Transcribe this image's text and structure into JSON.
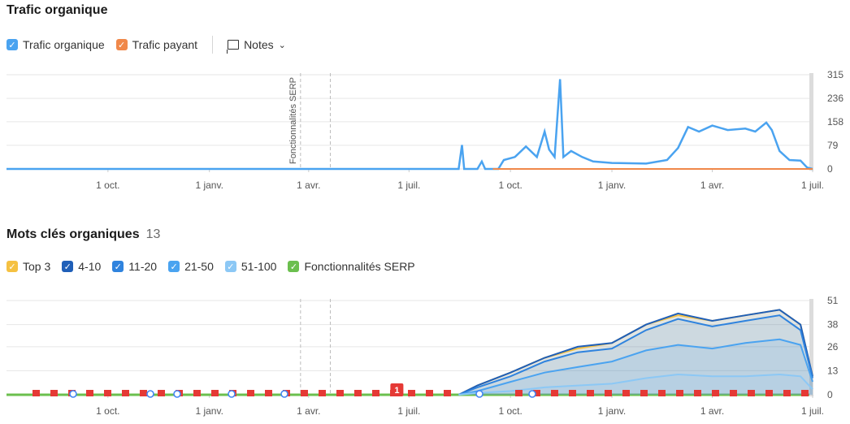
{
  "traffic": {
    "title": "Trafic organique",
    "legend": [
      {
        "label": "Trafic organique",
        "color": "#4aa3f0",
        "checked": true
      },
      {
        "label": "Trafic payant",
        "color": "#f0884a",
        "checked": true
      }
    ],
    "notes_label": "Notes"
  },
  "keywords": {
    "title": "Mots clés organiques",
    "count": "13",
    "legend": [
      {
        "label": "Top 3",
        "color": "#f5c142",
        "checked": true
      },
      {
        "label": "4-10",
        "color": "#1f5fb8",
        "checked": true
      },
      {
        "label": "11-20",
        "color": "#2f83de",
        "checked": true
      },
      {
        "label": "21-50",
        "color": "#4aa3f0",
        "checked": true
      },
      {
        "label": "51-100",
        "color": "#8cc8f5",
        "checked": true
      },
      {
        "label": "Fonctionnalités SERP",
        "color": "#6bbf4e",
        "checked": true
      }
    ]
  },
  "chart_data": [
    {
      "type": "line",
      "title": "Trafic organique",
      "x_range": [
        "2022-07-01",
        "2025-07-01"
      ],
      "x_ticks": [
        "1 oct.",
        "1 janv.",
        "1 avr.",
        "1 juil.",
        "1 oct.",
        "1 janv.",
        "1 avr.",
        "1 juil."
      ],
      "x_tick_dates": [
        "2022-10-01",
        "2023-01-01",
        "2023-04-01",
        "2023-07-01",
        "2023-10-01",
        "2024-01-01",
        "2024-04-01",
        "2024-07-01"
      ],
      "y_ticks": [
        0,
        79,
        158,
        236,
        315
      ],
      "ylim": [
        0,
        315
      ],
      "annotations": [
        {
          "label": "Fonctionnalités SERP",
          "date": "2023-04-01"
        }
      ],
      "series": [
        {
          "name": "Trafic organique",
          "color": "#4aa3f0",
          "points": [
            [
              "2022-07-01",
              0
            ],
            [
              "2023-08-15",
              0
            ],
            [
              "2023-08-18",
              80
            ],
            [
              "2023-08-20",
              0
            ],
            [
              "2023-09-01",
              0
            ],
            [
              "2023-09-05",
              25
            ],
            [
              "2023-09-08",
              0
            ],
            [
              "2023-09-20",
              0
            ],
            [
              "2023-09-25",
              30
            ],
            [
              "2023-10-05",
              40
            ],
            [
              "2023-10-15",
              75
            ],
            [
              "2023-10-25",
              40
            ],
            [
              "2023-11-01",
              125
            ],
            [
              "2023-11-05",
              65
            ],
            [
              "2023-11-10",
              40
            ],
            [
              "2023-11-15",
              300
            ],
            [
              "2023-11-18",
              40
            ],
            [
              "2023-11-25",
              60
            ],
            [
              "2023-12-05",
              40
            ],
            [
              "2023-12-15",
              25
            ],
            [
              "2024-01-01",
              20
            ],
            [
              "2024-02-01",
              18
            ],
            [
              "2024-02-20",
              30
            ],
            [
              "2024-03-01",
              70
            ],
            [
              "2024-03-10",
              140
            ],
            [
              "2024-03-20",
              125
            ],
            [
              "2024-04-01",
              145
            ],
            [
              "2024-04-15",
              130
            ],
            [
              "2024-05-01",
              135
            ],
            [
              "2024-05-10",
              125
            ],
            [
              "2024-05-20",
              155
            ],
            [
              "2024-05-25",
              130
            ],
            [
              "2024-06-01",
              60
            ],
            [
              "2024-06-10",
              30
            ],
            [
              "2024-06-20",
              28
            ],
            [
              "2024-06-26",
              5
            ],
            [
              "2024-07-01",
              0
            ]
          ]
        },
        {
          "name": "Trafic payant",
          "color": "#f0884a",
          "points": [
            [
              "2023-09-15",
              0
            ],
            [
              "2024-07-01",
              0
            ]
          ]
        }
      ]
    },
    {
      "type": "area",
      "title": "Mots clés organiques",
      "x_range": [
        "2022-07-01",
        "2025-07-01"
      ],
      "x_ticks": [
        "1 oct.",
        "1 janv.",
        "1 avr.",
        "1 juil.",
        "1 oct.",
        "1 janv.",
        "1 avr.",
        "1 juil."
      ],
      "x_tick_dates": [
        "2022-10-01",
        "2023-01-01",
        "2023-04-01",
        "2023-07-01",
        "2023-10-01",
        "2024-01-01",
        "2024-04-01",
        "2024-07-01"
      ],
      "y_ticks": [
        0,
        13,
        26,
        38,
        51
      ],
      "ylim": [
        0,
        51
      ],
      "note_badge": {
        "label": "1",
        "date": "2023-06-20"
      },
      "series": [
        {
          "name": "Top 3",
          "color": "#f5c142",
          "points": [
            [
              "2023-08-15",
              0
            ],
            [
              "2023-09-01",
              5
            ],
            [
              "2023-10-01",
              12
            ],
            [
              "2023-11-01",
              20
            ],
            [
              "2023-12-01",
              25
            ],
            [
              "2024-01-01",
              28
            ],
            [
              "2024-02-01",
              38
            ],
            [
              "2024-03-01",
              43
            ],
            [
              "2024-04-01",
              40
            ],
            [
              "2024-05-01",
              43
            ],
            [
              "2024-06-01",
              46
            ],
            [
              "2024-06-20",
              38
            ],
            [
              "2024-07-01",
              10
            ]
          ]
        },
        {
          "name": "4-10",
          "color": "#1f5fb8",
          "points": [
            [
              "2023-08-15",
              0
            ],
            [
              "2023-09-01",
              5
            ],
            [
              "2023-10-01",
              12
            ],
            [
              "2023-11-01",
              20
            ],
            [
              "2023-12-01",
              26
            ],
            [
              "2024-01-01",
              28
            ],
            [
              "2024-02-01",
              38
            ],
            [
              "2024-03-01",
              44
            ],
            [
              "2024-04-01",
              40
            ],
            [
              "2024-05-01",
              43
            ],
            [
              "2024-06-01",
              46
            ],
            [
              "2024-06-20",
              38
            ],
            [
              "2024-07-01",
              10
            ]
          ]
        },
        {
          "name": "11-20",
          "color": "#2f83de",
          "points": [
            [
              "2023-08-15",
              0
            ],
            [
              "2023-09-01",
              4
            ],
            [
              "2023-10-01",
              10
            ],
            [
              "2023-11-01",
              18
            ],
            [
              "2023-12-01",
              23
            ],
            [
              "2024-01-01",
              25
            ],
            [
              "2024-02-01",
              35
            ],
            [
              "2024-03-01",
              41
            ],
            [
              "2024-04-01",
              37
            ],
            [
              "2024-05-01",
              40
            ],
            [
              "2024-06-01",
              43
            ],
            [
              "2024-06-20",
              35
            ],
            [
              "2024-07-01",
              9
            ]
          ]
        },
        {
          "name": "21-50",
          "color": "#4aa3f0",
          "points": [
            [
              "2023-08-15",
              0
            ],
            [
              "2023-09-01",
              2
            ],
            [
              "2023-10-01",
              7
            ],
            [
              "2023-11-01",
              12
            ],
            [
              "2023-12-01",
              15
            ],
            [
              "2024-01-01",
              18
            ],
            [
              "2024-02-01",
              24
            ],
            [
              "2024-03-01",
              27
            ],
            [
              "2024-04-01",
              25
            ],
            [
              "2024-05-01",
              28
            ],
            [
              "2024-06-01",
              30
            ],
            [
              "2024-06-20",
              27
            ],
            [
              "2024-07-01",
              7
            ]
          ]
        },
        {
          "name": "51-100",
          "color": "#8cc8f5",
          "points": [
            [
              "2023-08-15",
              0
            ],
            [
              "2023-09-01",
              1
            ],
            [
              "2023-10-01",
              2
            ],
            [
              "2023-11-01",
              4
            ],
            [
              "2023-12-01",
              5
            ],
            [
              "2024-01-01",
              6
            ],
            [
              "2024-02-01",
              9
            ],
            [
              "2024-03-01",
              11
            ],
            [
              "2024-04-01",
              10
            ],
            [
              "2024-05-01",
              10
            ],
            [
              "2024-06-01",
              11
            ],
            [
              "2024-06-20",
              10
            ],
            [
              "2024-07-01",
              3
            ]
          ]
        }
      ]
    }
  ]
}
